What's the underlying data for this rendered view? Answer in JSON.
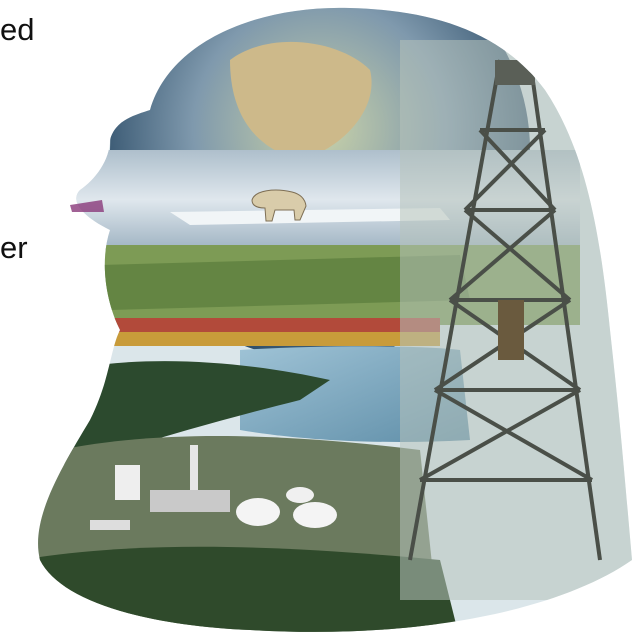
{
  "slide": {
    "text_lines": [
      "ed",
      "er"
    ]
  }
}
